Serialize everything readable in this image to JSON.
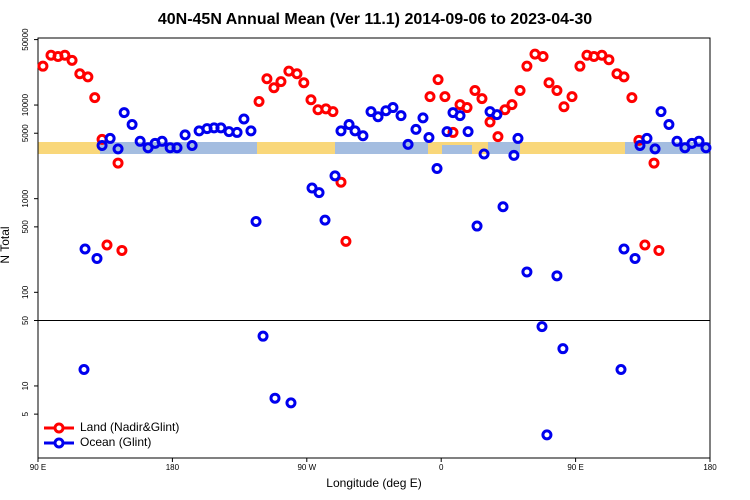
{
  "chart_data": {
    "type": "scatter",
    "title": "40N-45N Annual Mean (Ver 11.1)   2014-09-06 to 2023-04-30",
    "xlabel": "Longitude (deg E)",
    "ylabel": "N Total",
    "xlim": [
      90,
      540
    ],
    "ylim": [
      1.7,
      52000
    ],
    "log_y": true,
    "hline": 50,
    "xticks": [
      {
        "value": 90,
        "label": "90 E"
      },
      180,
      {
        "value": 270,
        "label": "90 W"
      },
      {
        "value": 360,
        "label": "0"
      },
      {
        "value": 450,
        "label": "90 E"
      },
      {
        "value": 540,
        "label": "180"
      }
    ],
    "yticks": [
      5,
      10,
      50,
      100,
      500,
      1000,
      5000,
      10000,
      50000
    ],
    "legend": "lower left",
    "series": [
      {
        "name": "Land (Nadir&Glint)",
        "color": "#ff0000",
        "x": [
          93.3,
          98.7,
          103.4,
          108,
          112.8,
          118,
          123.4,
          128,
          132.9,
          136.2,
          143.6,
          146.2,
          238,
          243.3,
          248,
          252.7,
          258,
          263.4,
          268,
          272.8,
          277.5,
          282.8,
          287.5,
          292.9,
          296.2,
          352.5,
          357.9,
          362.5,
          367.9,
          372.6,
          377.3,
          382.6,
          387.3,
          392.7,
          398,
          402.7,
          407.4,
          412.8,
          417.4,
          422.8,
          428.2,
          432.2,
          437.5,
          442.2,
          447.6,
          452.9,
          457.6,
          462.3,
          467.6,
          472.3,
          477.7,
          482.4,
          487.7,
          492.4,
          496.4,
          502.5,
          505.8
        ],
        "values": [
          26000,
          34000,
          33000,
          34000,
          30000,
          21600,
          20000,
          12000,
          4300,
          320,
          2400,
          280,
          10900,
          19100,
          15300,
          17800,
          23000,
          21600,
          17300,
          11400,
          8900,
          9100,
          8500,
          1500,
          350,
          12300,
          18700,
          12300,
          5100,
          10100,
          9400,
          14300,
          11700,
          6600,
          4600,
          8900,
          10100,
          14300,
          26000,
          35000,
          33000,
          17300,
          14300,
          9600,
          12300,
          26000,
          34000,
          33000,
          34000,
          30500,
          21600,
          20000,
          12000,
          4200,
          320,
          2400,
          280
        ]
      },
      {
        "name": "Ocean (Glint)",
        "color": "#0000ee",
        "x": [
          121.5,
          120.8,
          129.5,
          132.9,
          138.3,
          143.6,
          147.7,
          153,
          158.4,
          163.7,
          168.4,
          173.1,
          178.5,
          183.1,
          188.5,
          193.2,
          197.9,
          203.2,
          207.9,
          212.5,
          217.9,
          223.3,
          227.9,
          232.6,
          236,
          240.7,
          248.7,
          259.4,
          273.5,
          278.2,
          282.2,
          288.9,
          292.9,
          298.3,
          302.3,
          307.6,
          313,
          317.7,
          323,
          327.7,
          333.1,
          337.8,
          343.1,
          347.8,
          351.8,
          357.2,
          363.9,
          367.9,
          372.6,
          378,
          384,
          388.7,
          392.7,
          397.3,
          401.4,
          408.7,
          411.4,
          417.4,
          427.5,
          430.8,
          437.5,
          441.5,
          482.4,
          480.4,
          489.8,
          493.1,
          497.8,
          503.2,
          507.2,
          512.5,
          517.9,
          523.2,
          527.9,
          532.6,
          537.3
        ],
        "values": [
          290,
          15,
          230,
          3700,
          4400,
          3400,
          8300,
          6200,
          4100,
          3500,
          3900,
          4100,
          3500,
          3500,
          4800,
          3700,
          5300,
          5600,
          5700,
          5700,
          5200,
          5100,
          7100,
          5300,
          570,
          34,
          7.4,
          6.6,
          1300,
          1160,
          590,
          1750,
          5300,
          6200,
          5300,
          4700,
          8500,
          7500,
          8700,
          9400,
          7700,
          3800,
          5500,
          7300,
          4500,
          2100,
          5200,
          8300,
          7700,
          5200,
          510,
          3000,
          8500,
          7900,
          820,
          2900,
          4400,
          165,
          43,
          3,
          150,
          25,
          290,
          15,
          230,
          3700,
          4400,
          3400,
          8500,
          6200,
          4100,
          3500,
          3900,
          4100,
          3500
        ]
      }
    ]
  }
}
